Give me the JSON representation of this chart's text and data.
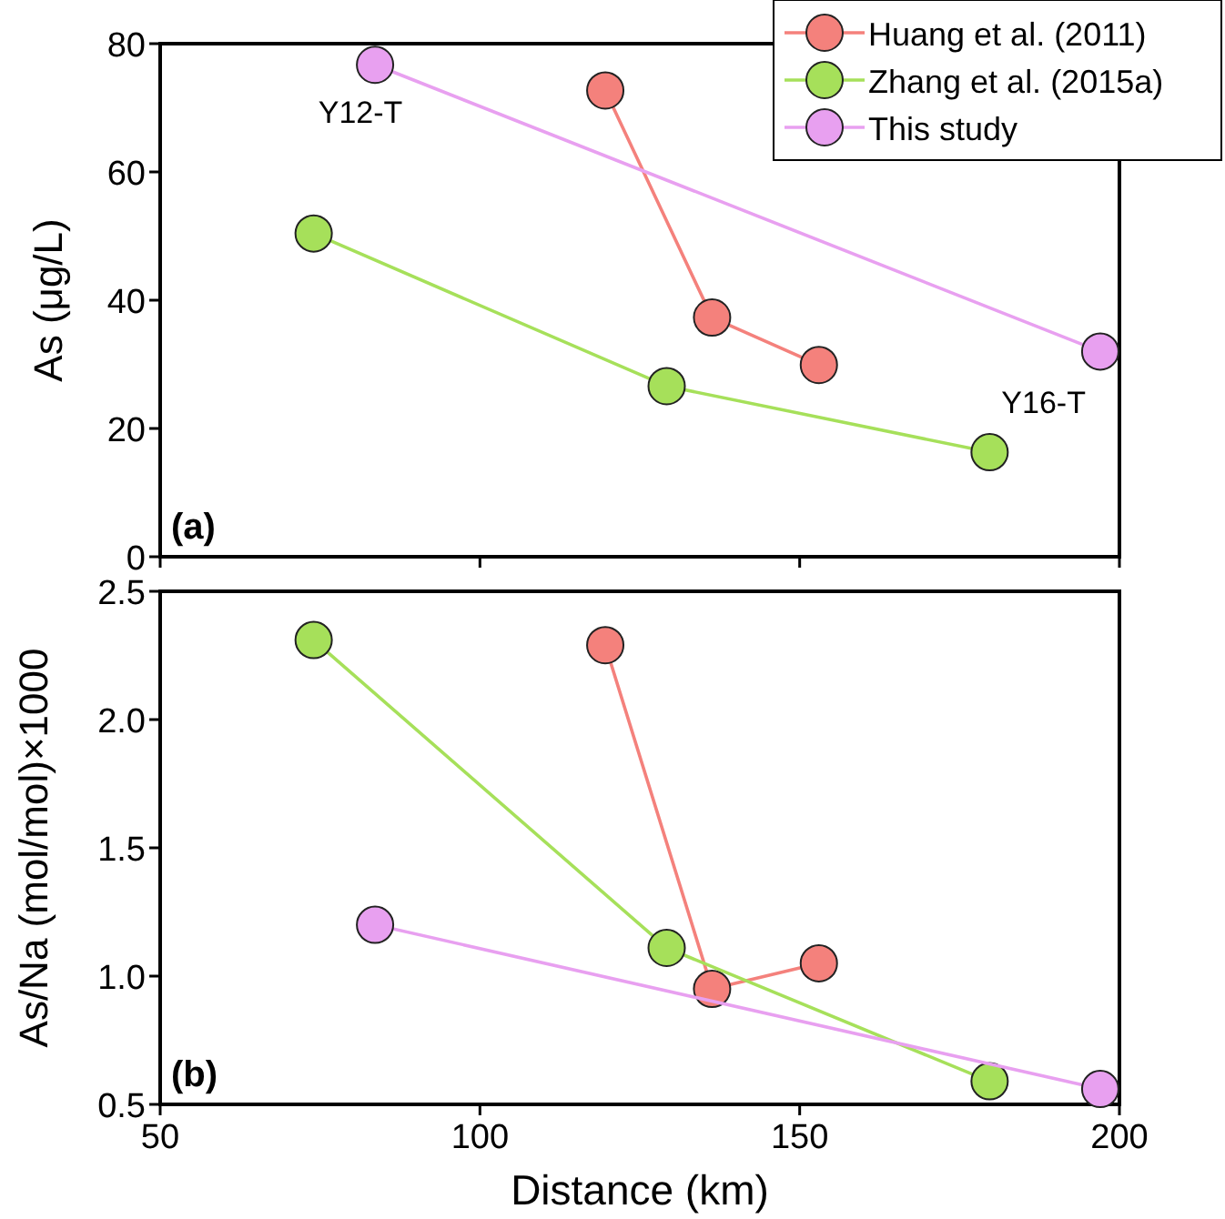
{
  "chart_data": [
    {
      "type": "line",
      "ylabel": "As (μg/L)",
      "xlim": [
        50,
        200
      ],
      "xticks": [
        50,
        100,
        150,
        200
      ],
      "ylim": [
        0,
        80
      ],
      "yticks": [
        0,
        20,
        40,
        60,
        80
      ],
      "tick_labels": "y",
      "marker": "circle",
      "legend": "top right",
      "annotations": [
        {
          "text": "Y12-T",
          "x": 83.6,
          "y": 76.7
        },
        {
          "text": "Y16-T",
          "x": 197,
          "y": 32
        },
        "(a)"
      ],
      "series": [
        {
          "name": "Huang et al. (2011)",
          "color": "#f4817c",
          "x": [
            119.6,
            136.3,
            153
          ],
          "values": [
            72.7,
            37.3,
            29.9
          ]
        },
        {
          "name": "Zhang et al. (2015a)",
          "color": "#a6e05a",
          "x": [
            74,
            129.2,
            179.7
          ],
          "values": [
            50.4,
            26.6,
            16.3
          ]
        },
        {
          "name": "This study",
          "color": "#e8a0f0",
          "x": [
            83.6,
            197
          ],
          "values": [
            76.7,
            32
          ]
        }
      ]
    },
    {
      "type": "line",
      "xlabel": "Distance (km)",
      "ylabel": "As/Na (mol/mol)×1000",
      "xlim": [
        50,
        200
      ],
      "xticks": [
        50,
        100,
        150,
        200
      ],
      "ylim": [
        0.5,
        2.5
      ],
      "yticks": [
        {
          "value": 0.5,
          "label": "0.5"
        },
        {
          "value": 1,
          "label": "1.0"
        },
        {
          "value": 1.5,
          "label": "1.5"
        },
        {
          "value": 2,
          "label": "2.0"
        },
        {
          "value": 2.5,
          "label": "2.5"
        }
      ],
      "marker": "circle",
      "annotations": [
        "(b)"
      ],
      "series": [
        {
          "color": "#f4817c",
          "x": [
            119.6,
            136.3,
            153
          ],
          "values": [
            2.29,
            0.95,
            1.05
          ]
        },
        {
          "color": "#a6e05a",
          "x": [
            74,
            129.2,
            179.7
          ],
          "values": [
            2.31,
            1.11,
            0.59
          ]
        },
        {
          "color": "#e8a0f0",
          "x": [
            83.6,
            197
          ],
          "values": [
            1.2,
            0.56
          ]
        }
      ]
    }
  ]
}
